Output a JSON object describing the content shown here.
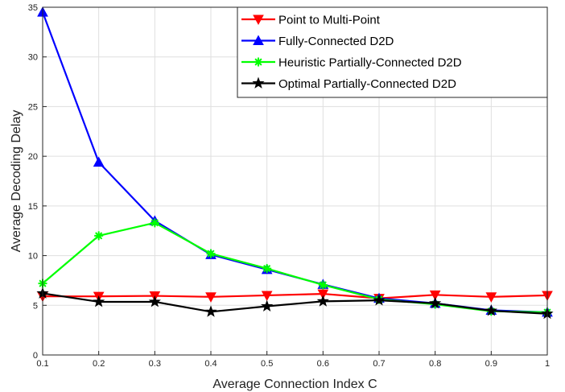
{
  "chart_data": {
    "type": "line",
    "xlabel": "Average Connection Index C",
    "ylabel": "Average Decoding Delay",
    "xlim": [
      0.1,
      1
    ],
    "ylim": [
      0,
      35
    ],
    "xticks": [
      "0.1",
      "0.2",
      "0.3",
      "0.4",
      "0.5",
      "0.6",
      "0.7",
      "0.8",
      "0.9",
      "1"
    ],
    "yticks": [
      "0",
      "5",
      "10",
      "15",
      "20",
      "25",
      "30",
      "35"
    ],
    "grid": true,
    "legend_position": "top-right",
    "x": [
      0.1,
      0.2,
      0.3,
      0.4,
      0.5,
      0.6,
      0.7,
      0.8,
      0.9,
      1.0
    ],
    "series": [
      {
        "name": "Point to Multi-Point",
        "color": "#ff0000",
        "marker": "triangle-down",
        "values": [
          5.9,
          5.9,
          5.95,
          5.85,
          6.0,
          6.15,
          5.7,
          6.05,
          5.85,
          6.0
        ]
      },
      {
        "name": "Fully-Connected D2D",
        "color": "#0000ff",
        "marker": "triangle-up",
        "values": [
          34.5,
          19.4,
          13.5,
          10.1,
          8.6,
          7.1,
          5.7,
          5.2,
          4.5,
          4.3
        ]
      },
      {
        "name": "Heuristic Partially-Connected D2D",
        "color": "#00ff00",
        "marker": "asterisk",
        "values": [
          7.2,
          12.0,
          13.3,
          10.2,
          8.7,
          7.05,
          5.6,
          5.1,
          4.4,
          4.3
        ]
      },
      {
        "name": "Optimal Partially-Connected D2D",
        "color": "#000000",
        "marker": "star",
        "values": [
          6.2,
          5.35,
          5.35,
          4.35,
          4.9,
          5.4,
          5.5,
          5.2,
          4.45,
          4.15
        ]
      }
    ]
  }
}
